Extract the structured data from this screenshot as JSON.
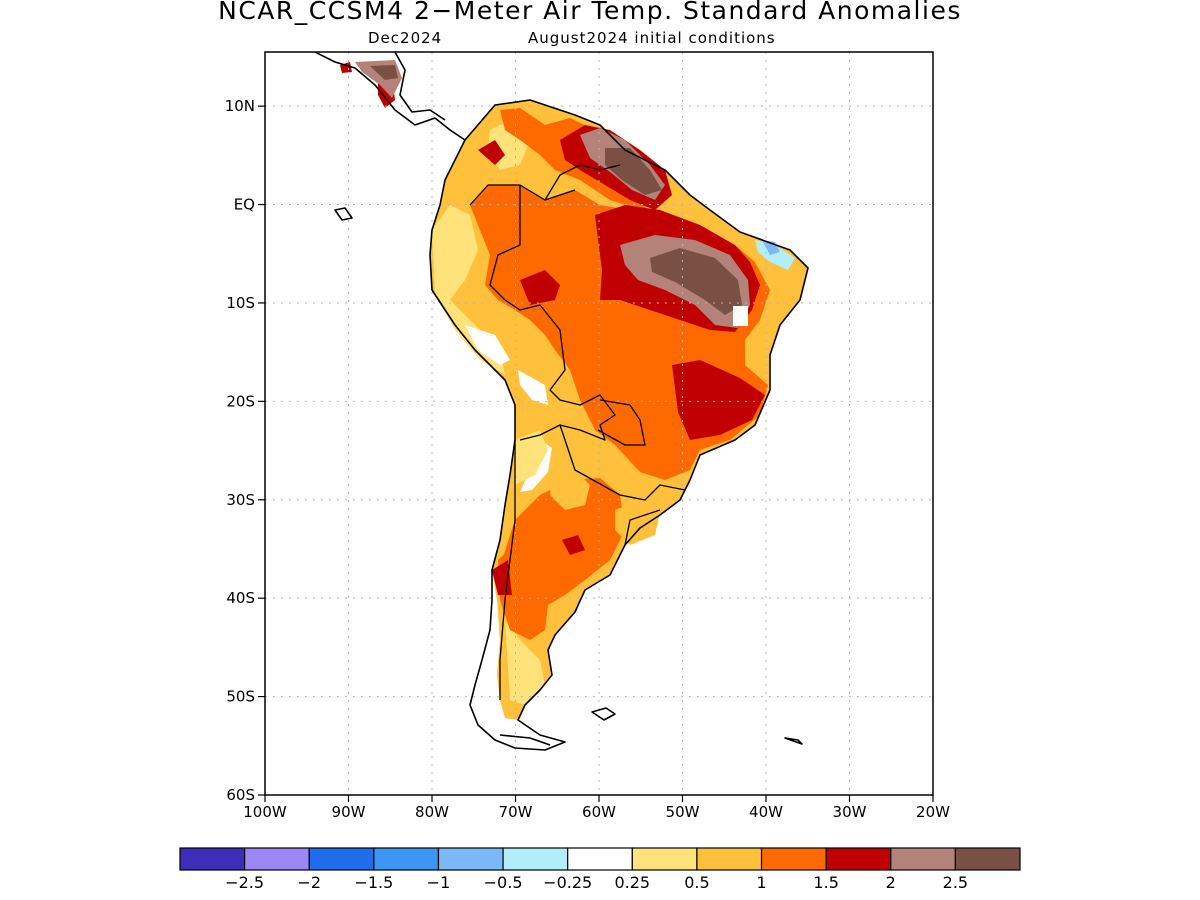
{
  "title": "NCAR_CCSM4 2−Meter Air Temp. Standard Anomalies",
  "subtitle_left": "Dec2024",
  "subtitle_right": "August2024 initial conditions",
  "lat_labels": [
    "10N",
    "EQ",
    "10S",
    "20S",
    "30S",
    "40S",
    "50S",
    "60S"
  ],
  "lon_labels": [
    "100W",
    "90W",
    "80W",
    "70W",
    "60W",
    "50W",
    "40W",
    "30W",
    "20W"
  ],
  "map_extent": {
    "lon": [
      -100,
      -20
    ],
    "lat": [
      -60,
      15.5
    ]
  },
  "colorbar": {
    "colors": [
      "#3d2db8",
      "#9b87f5",
      "#1f6cec",
      "#3e96f4",
      "#7ab8f8",
      "#b2eefa",
      "#ffffff",
      "#ffe27a",
      "#ffc03c",
      "#ff6a00",
      "#c00000",
      "#b3837a",
      "#7a5045"
    ],
    "labels": [
      "−2.5",
      "−2",
      "−1.5",
      "−1",
      "−0.5",
      "−0.25",
      "0.25",
      "0.5",
      "1",
      "1.5",
      "2",
      "2.5"
    ]
  }
}
